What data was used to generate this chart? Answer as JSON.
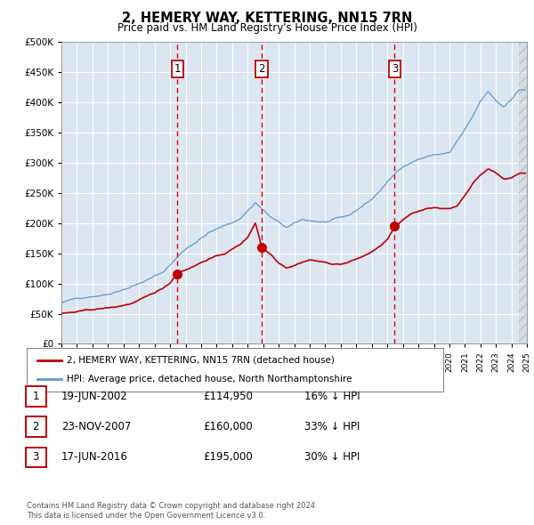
{
  "title": "2, HEMERY WAY, KETTERING, NN15 7RN",
  "subtitle": "Price paid vs. HM Land Registry's House Price Index (HPI)",
  "legend_line1": "2, HEMERY WAY, KETTERING, NN15 7RN (detached house)",
  "legend_line2": "HPI: Average price, detached house, North Northamptonshire",
  "footer1": "Contains HM Land Registry data © Crown copyright and database right 2024.",
  "footer2": "This data is licensed under the Open Government Licence v3.0.",
  "transactions": [
    {
      "num": 1,
      "date": "19-JUN-2002",
      "price": "£114,950",
      "hpi": "16% ↓ HPI",
      "year": 2002.47,
      "price_val": 114950
    },
    {
      "num": 2,
      "date": "23-NOV-2007",
      "price": "£160,000",
      "hpi": "33% ↓ HPI",
      "year": 2007.9,
      "price_val": 160000
    },
    {
      "num": 3,
      "date": "17-JUN-2016",
      "price": "£195,000",
      "hpi": "30% ↓ HPI",
      "year": 2016.47,
      "price_val": 195000
    }
  ],
  "hpi_color": "#5b9bd5",
  "price_color": "#c00000",
  "vline_color": "#e00000",
  "marker_box_color": "#c00000",
  "bg_color": "#dce6f1",
  "grid_color": "#ffffff",
  "xlim": [
    1995,
    2025
  ],
  "ylim": [
    0,
    500000
  ],
  "yticks": [
    0,
    50000,
    100000,
    150000,
    200000,
    250000,
    300000,
    350000,
    400000,
    450000,
    500000
  ]
}
